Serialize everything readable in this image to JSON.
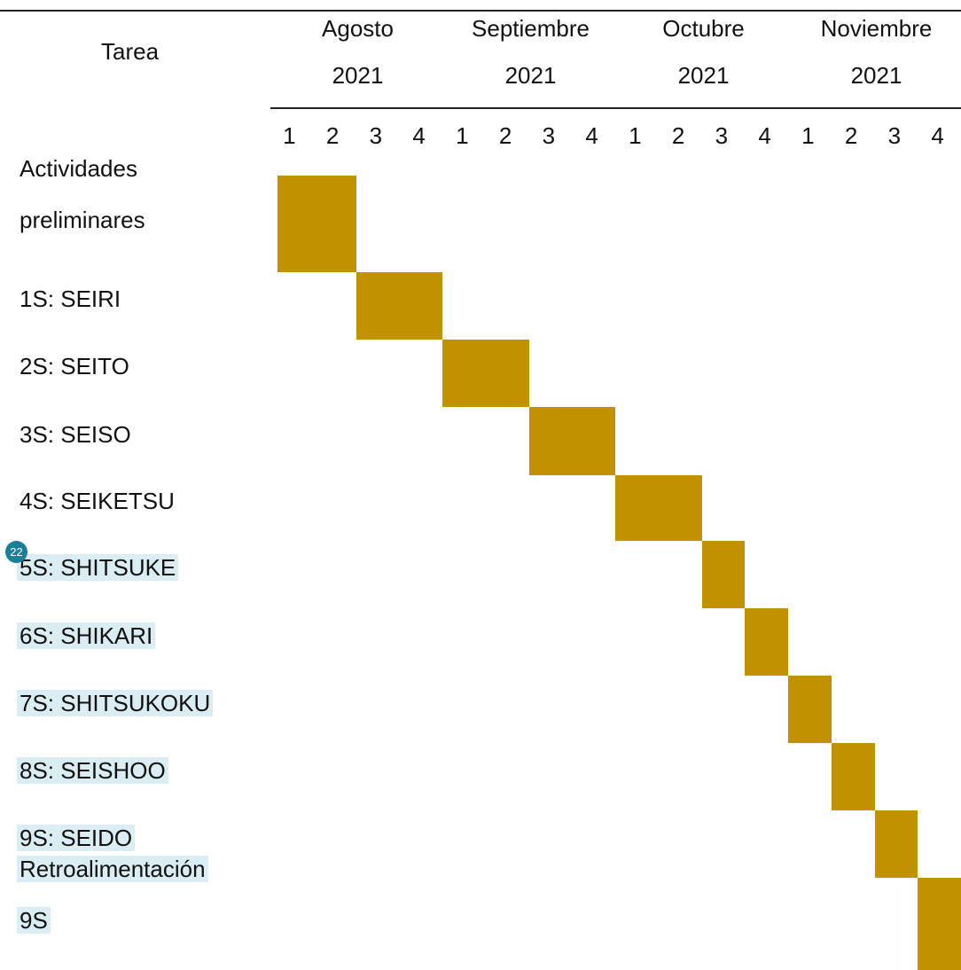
{
  "header": {
    "task": "Tarea",
    "months": [
      {
        "name": "Agosto",
        "year": "2021"
      },
      {
        "name": "Septiembre",
        "year": "2021"
      },
      {
        "name": "Octubre",
        "year": "2021"
      },
      {
        "name": "Noviembre",
        "year": "2021"
      }
    ],
    "weeks": [
      1,
      2,
      3,
      4,
      1,
      2,
      3,
      4,
      1,
      2,
      3,
      4,
      1,
      2,
      3,
      4
    ]
  },
  "bar_color": "#c29100",
  "tasks": [
    {
      "label": [
        "Actividades",
        "preliminares"
      ],
      "start_week": 0,
      "end_week": 1,
      "highlight": false
    },
    {
      "label": [
        "1S: SEIRI"
      ],
      "start_week": 2,
      "end_week": 3,
      "highlight": false
    },
    {
      "label": [
        "2S: SEITO"
      ],
      "start_week": 4,
      "end_week": 5,
      "highlight": false
    },
    {
      "label": [
        "3S: SEISO"
      ],
      "start_week": 6,
      "end_week": 7,
      "highlight": false
    },
    {
      "label": [
        "4S: SEIKETSU"
      ],
      "start_week": 8,
      "end_week": 9,
      "highlight": false
    },
    {
      "label": [
        "5S: SHITSUKE"
      ],
      "start_week": 10,
      "end_week": 10,
      "highlight": true
    },
    {
      "label": [
        "6S: SHIKARI"
      ],
      "start_week": 11,
      "end_week": 11,
      "highlight": true
    },
    {
      "label": [
        "7S: SHITSUKOKU"
      ],
      "start_week": 12,
      "end_week": 12,
      "highlight": true
    },
    {
      "label": [
        "8S: SEISHOO"
      ],
      "start_week": 13,
      "end_week": 13,
      "highlight": true
    },
    {
      "label": [
        "9S: SEIDO"
      ],
      "start_week": 14,
      "end_week": 14,
      "highlight": true
    },
    {
      "label": [
        "Retroalimentación",
        "9S"
      ],
      "start_week": 15,
      "end_week": 15,
      "highlight": true
    }
  ],
  "comment_badge": "22"
}
